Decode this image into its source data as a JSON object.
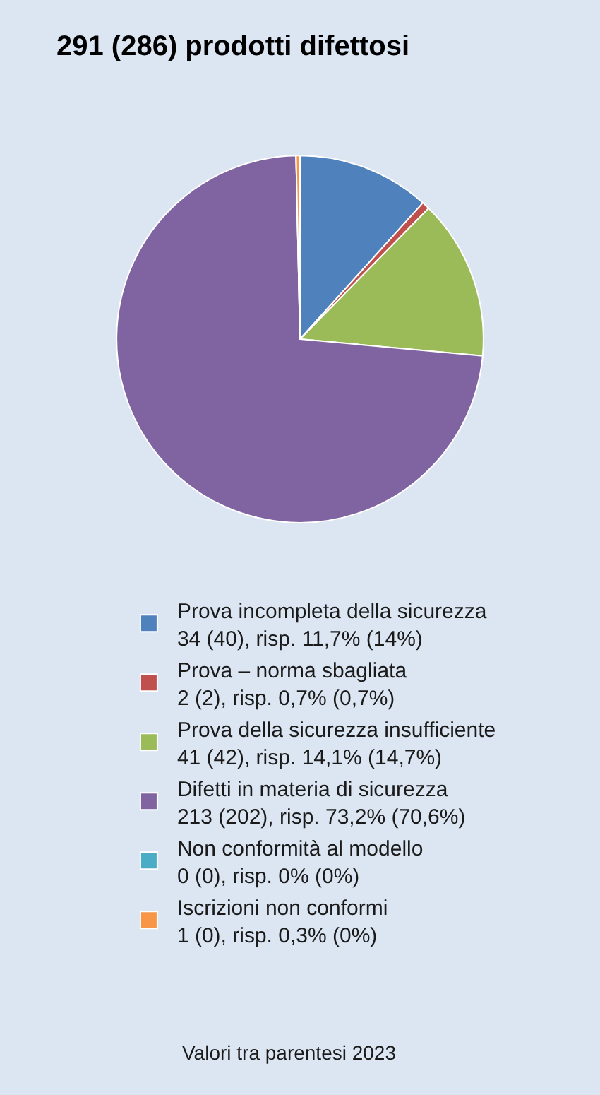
{
  "chart_data": {
    "type": "pie",
    "title": "291 (286) prodotti difettosi",
    "categories": [
      "Prova incompleta della sicurezza",
      "Prova – norma sbagliata",
      "Prova della sicurezza insufficiente",
      "Difetti in materia di sicurezza",
      "Non conformità al modello",
      "Iscrizioni non conformi"
    ],
    "values": [
      34,
      2,
      41,
      213,
      0,
      1
    ],
    "colors": [
      "#4f81bd",
      "#c0504d",
      "#9bbb59",
      "#8064a2",
      "#4bacc6",
      "#f79646"
    ],
    "value_labels": [
      "34 (40), risp. 11,7% (14%)",
      "2 (2), risp. 0,7% (0,7%)",
      "41 (42), risp. 14,1% (14,7%)",
      "213 (202), risp. 73,2% (70,6%)",
      "0 (0), risp. 0% (0%)",
      "1 (0), risp. 0,3% (0%)"
    ],
    "legend": "bottom",
    "annotations": [
      "Valori tra parentesi 2023"
    ]
  }
}
